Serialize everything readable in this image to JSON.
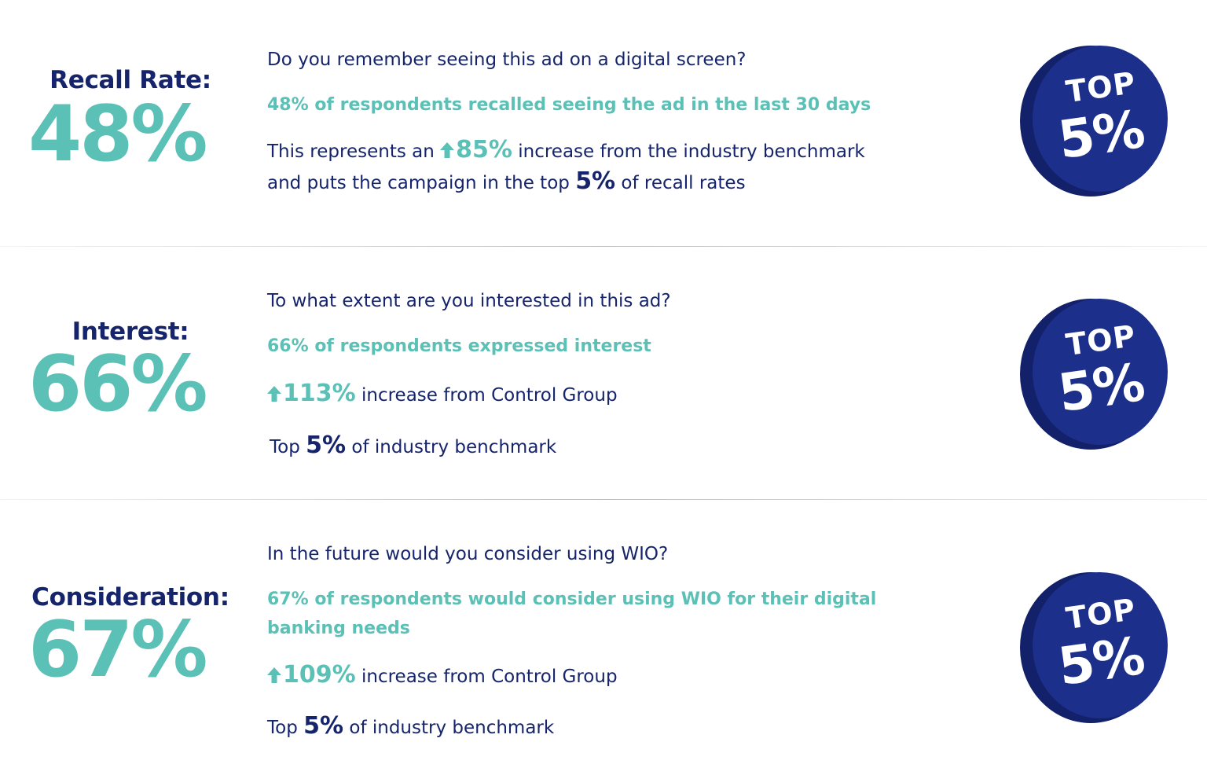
{
  "sections": [
    {
      "label": "Recall Rate:",
      "value": "48%",
      "question": "Do you remember seeing this ad on a digital screen?",
      "highlight": "48% of respondents recalled seeing the ad in the last 30 days",
      "detail_line1_prefix": "This represents an ",
      "detail_line1_up": "85%",
      "detail_line1_suffix": " increase from the industry benchmark",
      "detail_line2_prefix": "and puts the campaign in the top ",
      "detail_line2_pct": "5%",
      "detail_line2_suffix": " of recall rates",
      "badge_top": "TOP",
      "badge_pct": "5%"
    },
    {
      "label": "Interest:",
      "value": "66%",
      "question": "To what extent are you interested in this ad?",
      "highlight": "66% of respondents expressed interest",
      "up_value": "113%",
      "up_suffix": " increase from Control Group",
      "top_prefix": "Top ",
      "top_pct": "5%",
      "top_suffix": " of industry benchmark",
      "badge_top": "TOP",
      "badge_pct": "5%"
    },
    {
      "label": "Consideration:",
      "value": "67%",
      "question": "In the future would you consider using WIO?",
      "highlight": "67% of respondents would consider using WIO for their digital banking needs",
      "up_value": "109%",
      "up_suffix": " increase from Control Group",
      "top_prefix": "Top ",
      "top_pct": "5%",
      "top_suffix": " of industry benchmark",
      "badge_top": "TOP",
      "badge_pct": "5%"
    }
  ],
  "colors": {
    "navy": "#15246b",
    "teal": "#5bc0b5",
    "badge_face": "#1c2f8a",
    "badge_edge": "#13216a"
  },
  "icons": {
    "arrow": "up-arrow-icon",
    "badge": "top-badge-icon"
  }
}
